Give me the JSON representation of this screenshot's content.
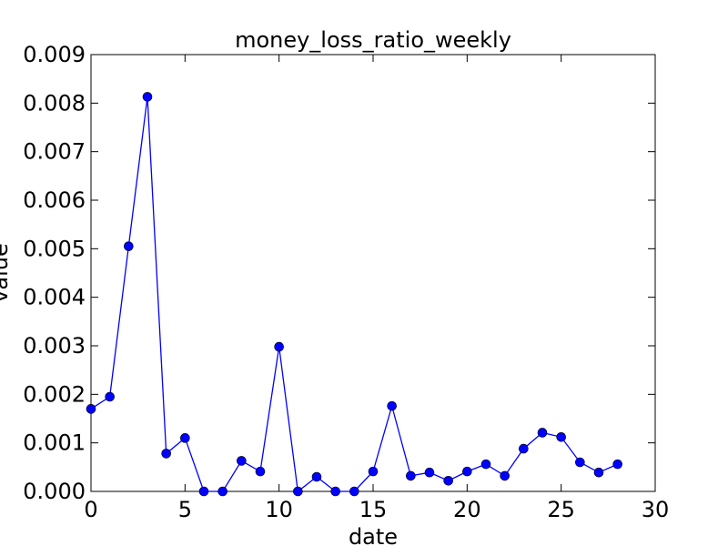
{
  "chart_data": {
    "type": "line",
    "title": "money_loss_ratio_weekly",
    "xlabel": "date",
    "ylabel": "value",
    "xlim": [
      0,
      30
    ],
    "ylim": [
      0,
      0.009
    ],
    "xticks": [
      "0",
      "5",
      "10",
      "15",
      "20",
      "25",
      "30"
    ],
    "yticks": [
      "0.000",
      "0.001",
      "0.002",
      "0.003",
      "0.004",
      "0.005",
      "0.006",
      "0.007",
      "0.008",
      "0.009"
    ],
    "grid": false,
    "series_color": "#0000ff",
    "series": [
      {
        "x": [
          0,
          1,
          2,
          3,
          4,
          5,
          6,
          7,
          8,
          9,
          10,
          11,
          12,
          13,
          14,
          15,
          16,
          17,
          18,
          19,
          20,
          21,
          22,
          23,
          24,
          25,
          26,
          27,
          28
        ],
        "values": [
          0.0017,
          0.00195,
          0.00505,
          0.00813,
          0.00078,
          0.0011,
          0.0,
          0.0,
          0.00063,
          0.00041,
          0.00298,
          0.0,
          0.0003,
          0.0,
          0.0,
          0.00041,
          0.00176,
          0.00032,
          0.00039,
          0.00022,
          0.00041,
          0.00056,
          0.00032,
          0.00088,
          0.00121,
          0.00112,
          0.0006,
          0.00039,
          0.00056
        ]
      }
    ]
  }
}
